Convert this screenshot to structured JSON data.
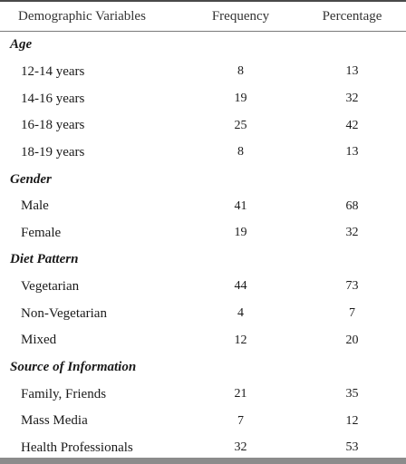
{
  "table": {
    "headers": {
      "variable": "Demographic Variables",
      "frequency": "Frequency",
      "percentage": "Percentage"
    },
    "groups": [
      {
        "title": "Age",
        "rows": [
          {
            "label": "12-14 years",
            "frequency": "8",
            "percentage": "13"
          },
          {
            "label": "14-16 years",
            "frequency": "19",
            "percentage": "32"
          },
          {
            "label": "16-18 years",
            "frequency": "25",
            "percentage": "42"
          },
          {
            "label": "18-19 years",
            "frequency": "8",
            "percentage": "13"
          }
        ]
      },
      {
        "title": "Gender",
        "rows": [
          {
            "label": "Male",
            "frequency": "41",
            "percentage": "68"
          },
          {
            "label": "Female",
            "frequency": "19",
            "percentage": "32"
          }
        ]
      },
      {
        "title": "Diet Pattern",
        "rows": [
          {
            "label": "Vegetarian",
            "frequency": "44",
            "percentage": "73"
          },
          {
            "label": "Non-Vegetarian",
            "frequency": "4",
            "percentage": "7"
          },
          {
            "label": "Mixed",
            "frequency": "12",
            "percentage": "20"
          }
        ]
      },
      {
        "title": "Source of Information",
        "rows": [
          {
            "label": "Family, Friends",
            "frequency": "21",
            "percentage": "35"
          },
          {
            "label": "Mass Media",
            "frequency": "7",
            "percentage": "12"
          },
          {
            "label": "Health Professionals",
            "frequency": "32",
            "percentage": "53"
          }
        ]
      }
    ]
  }
}
